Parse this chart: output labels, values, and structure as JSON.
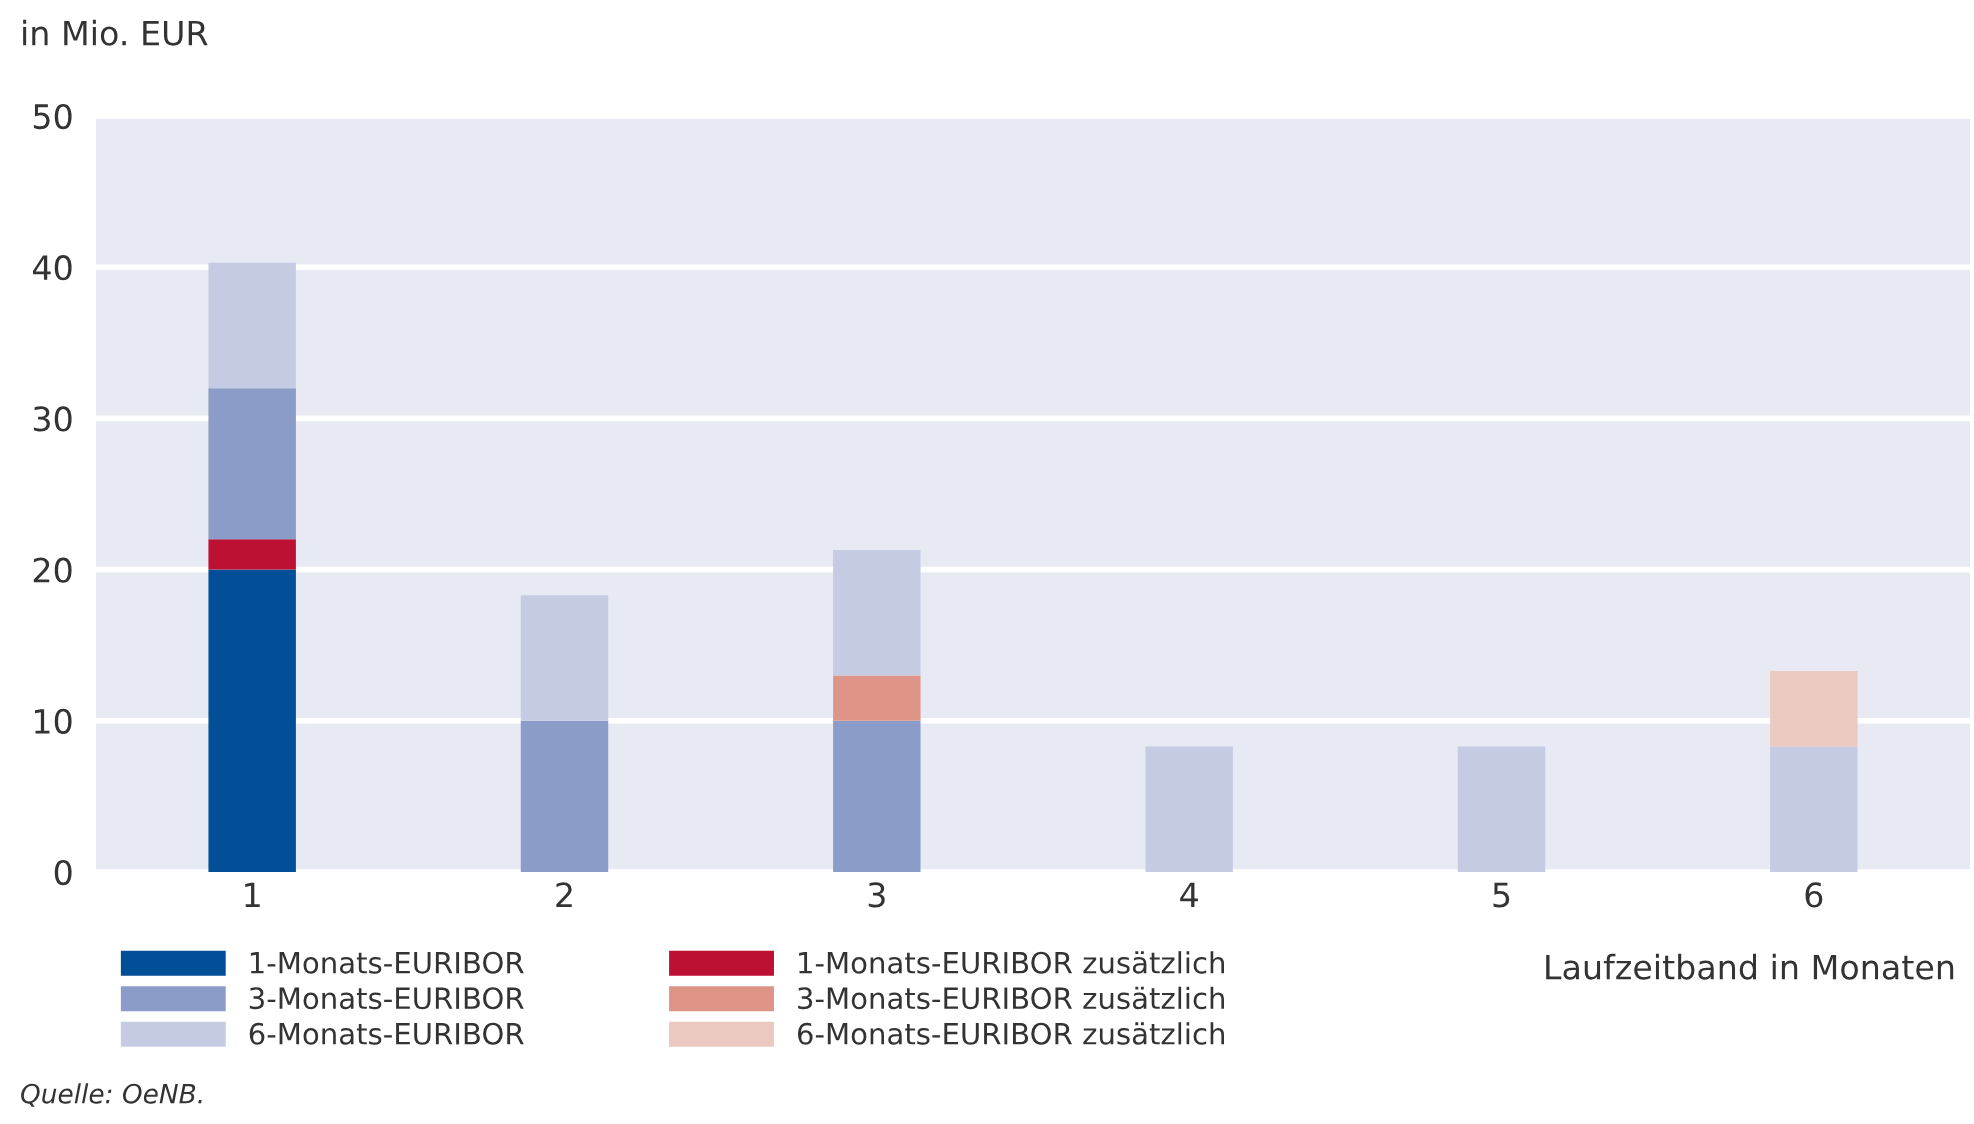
{
  "chart_data": {
    "type": "bar",
    "stacked": true,
    "ylabel": "in Mio. EUR",
    "xlabel": "Laufzeitband in Monaten",
    "categories": [
      "1",
      "2",
      "3",
      "4",
      "5",
      "6"
    ],
    "series": [
      {
        "name": "1-Monats-EURIBOR",
        "color": "#034f97",
        "values": [
          20,
          0,
          0,
          0,
          0,
          0
        ]
      },
      {
        "name": "1-Monats-EURIBOR zusätzlich",
        "color": "#bd1133",
        "values": [
          2,
          0,
          0,
          0,
          0,
          0
        ]
      },
      {
        "name": "3-Monats-EURIBOR",
        "color": "#8a9cc7",
        "values": [
          10,
          10,
          10,
          0,
          0,
          0
        ]
      },
      {
        "name": "3-Monats-EURIBOR zusätzlich",
        "color": "#de9486",
        "values": [
          0,
          0,
          3,
          0,
          0,
          0
        ]
      },
      {
        "name": "6-Monats-EURIBOR",
        "color": "#c6cbe4",
        "values": [
          8.3,
          8.3,
          8.3,
          8.3,
          8.3,
          8.3
        ]
      },
      {
        "name": "6-Monats-EURIBOR zusätzlich",
        "color": "#ecc9c0",
        "values": [
          0,
          0,
          0,
          0,
          0,
          5
        ]
      }
    ],
    "ylim": [
      0,
      50
    ],
    "yticks": [
      0,
      10,
      20,
      30,
      40,
      50
    ],
    "grid": "y",
    "legend": "bottom left",
    "annotations": [
      "Quelle: OeNB."
    ]
  }
}
